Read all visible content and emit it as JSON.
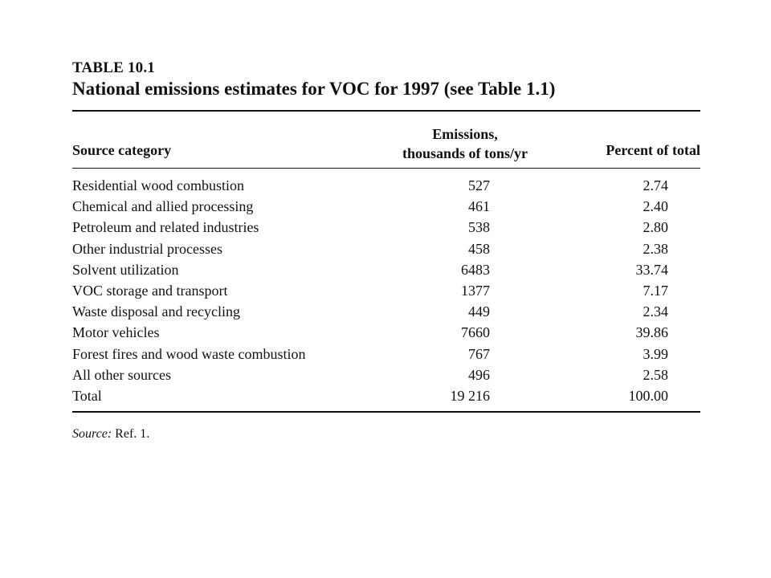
{
  "table": {
    "number": "TABLE 10.1",
    "title": "National emissions estimates for VOC for 1997 (see Table 1.1)",
    "headers": {
      "source_category": "Source category",
      "emissions_line1": "Emissions,",
      "emissions_line2": "thousands of tons/yr",
      "percent": "Percent of total"
    },
    "rows": [
      {
        "category": "Residential wood combustion",
        "emissions": "527",
        "percent": "2.74"
      },
      {
        "category": "Chemical and allied processing",
        "emissions": "461",
        "percent": "2.40"
      },
      {
        "category": "Petroleum and related industries",
        "emissions": "538",
        "percent": "2.80"
      },
      {
        "category": "Other industrial processes",
        "emissions": "458",
        "percent": "2.38"
      },
      {
        "category": "Solvent utilization",
        "emissions": "6483",
        "percent": "33.74"
      },
      {
        "category": "VOC storage and transport",
        "emissions": "1377",
        "percent": "7.17"
      },
      {
        "category": "Waste disposal and recycling",
        "emissions": "449",
        "percent": "2.34"
      },
      {
        "category": "Motor vehicles",
        "emissions": "7660",
        "percent": "39.86"
      },
      {
        "category": "Forest fires and wood waste combustion",
        "emissions": "767",
        "percent": "3.99"
      },
      {
        "category": "All other sources",
        "emissions": "496",
        "percent": "2.58"
      },
      {
        "category": "Total",
        "emissions": "19 216",
        "percent": "100.00"
      }
    ],
    "source_note": {
      "label": "Source:",
      "text": "Ref. 1."
    }
  }
}
